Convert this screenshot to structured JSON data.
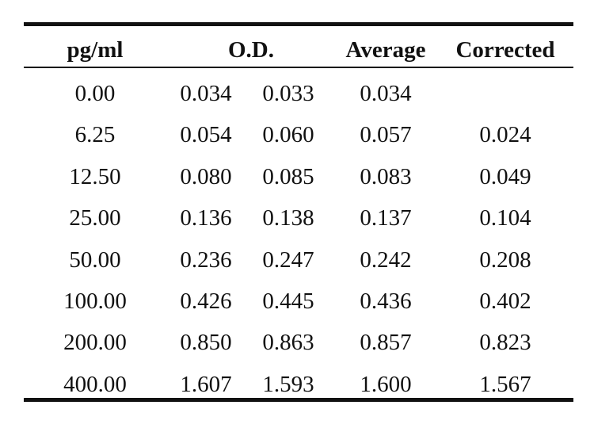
{
  "table": {
    "headers": {
      "concentration": "pg/ml",
      "od": "O.D.",
      "average": "Average",
      "corrected": "Corrected"
    },
    "rows": [
      {
        "concentration": "0.00",
        "od1": "0.034",
        "od2": "0.033",
        "average": "0.034",
        "corrected": ""
      },
      {
        "concentration": "6.25",
        "od1": "0.054",
        "od2": "0.060",
        "average": "0.057",
        "corrected": "0.024"
      },
      {
        "concentration": "12.50",
        "od1": "0.080",
        "od2": "0.085",
        "average": "0.083",
        "corrected": "0.049"
      },
      {
        "concentration": "25.00",
        "od1": "0.136",
        "od2": "0.138",
        "average": "0.137",
        "corrected": "0.104"
      },
      {
        "concentration": "50.00",
        "od1": "0.236",
        "od2": "0.247",
        "average": "0.242",
        "corrected": "0.208"
      },
      {
        "concentration": "100.00",
        "od1": "0.426",
        "od2": "0.445",
        "average": "0.436",
        "corrected": "0.402"
      },
      {
        "concentration": "200.00",
        "od1": "0.850",
        "od2": "0.863",
        "average": "0.857",
        "corrected": "0.823"
      },
      {
        "concentration": "400.00",
        "od1": "1.607",
        "od2": "1.593",
        "average": "1.600",
        "corrected": "1.567"
      }
    ]
  }
}
